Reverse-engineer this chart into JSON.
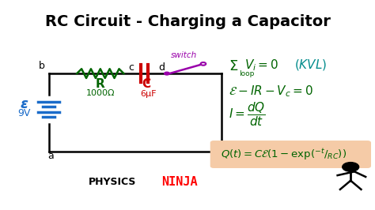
{
  "title": "RC Circuit - Charging a Capacitor",
  "title_bg": "#FFFF00",
  "title_color": "#000000",
  "bg_color": "#FFFFFF",
  "circuit_color": "#000000",
  "battery_color": "#1a6bc9",
  "resistor_color": "#006400",
  "capacitor_color": "#CC0000",
  "switch_color": "#9900AA",
  "equation_color": "#006400",
  "kvl_italic_color": "#008B8B",
  "highlight_color": "#F5CBA7",
  "node_b": "b",
  "node_c": "c",
  "node_d": "d",
  "node_a": "a",
  "switch_label": "switch",
  "R_label": "R",
  "R_value": "1000Ω",
  "C_label": "C",
  "C_value": "6μF",
  "battery_label": "ε",
  "battery_value": "9V"
}
